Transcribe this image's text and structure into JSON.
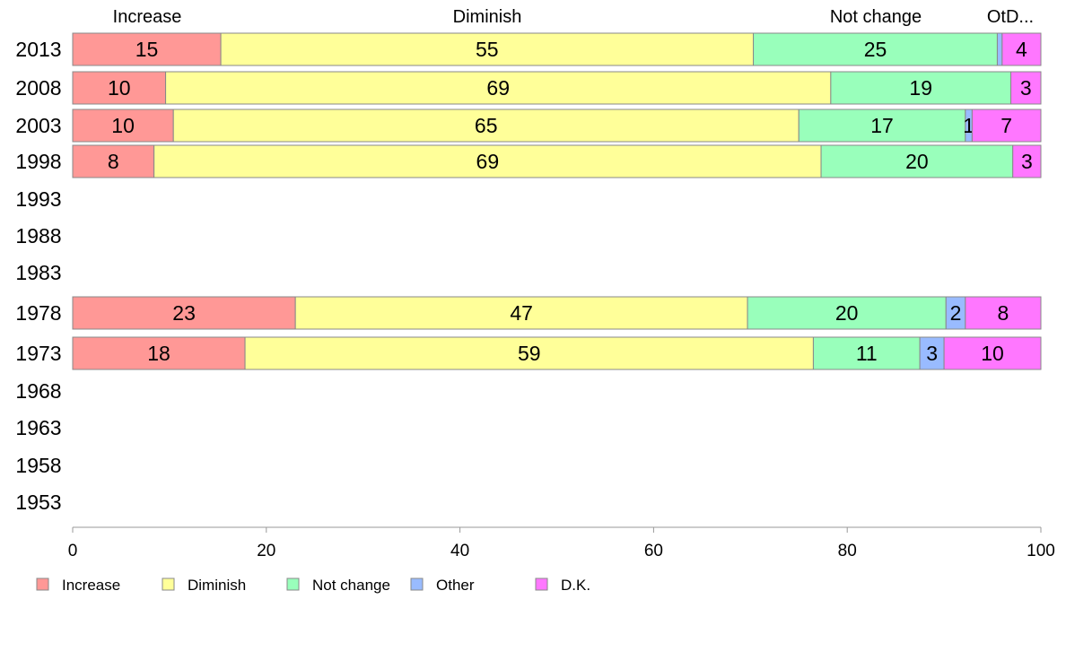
{
  "chart_data": {
    "type": "bar",
    "orientation": "horizontal",
    "stacked": true,
    "categories": [
      "2013",
      "2008",
      "2003",
      "1998",
      "1993",
      "1988",
      "1983",
      "1978",
      "1973",
      "1968",
      "1963",
      "1958",
      "1953"
    ],
    "series": [
      {
        "name": "Increase",
        "color": "#ff9896",
        "values": [
          15.3,
          9.6,
          10.4,
          8.4,
          null,
          null,
          null,
          23,
          17.8,
          null,
          null,
          null,
          null
        ],
        "labels": [
          "15",
          "10",
          "10",
          "8",
          "",
          "",
          "",
          "23",
          "18",
          "",
          "",
          "",
          ""
        ]
      },
      {
        "name": "Diminish",
        "color": "#ffff99",
        "values": [
          55,
          68.7,
          64.6,
          68.9,
          null,
          null,
          null,
          46.7,
          58.7,
          null,
          null,
          null,
          null
        ],
        "labels": [
          "55",
          "69",
          "65",
          "69",
          "",
          "",
          "",
          "47",
          "59",
          "",
          "",
          "",
          ""
        ]
      },
      {
        "name": "Not change",
        "color": "#99ffbb",
        "values": [
          25.2,
          18.6,
          17.2,
          19.8,
          null,
          null,
          null,
          20.5,
          11,
          null,
          null,
          null,
          null
        ],
        "labels": [
          "25",
          "19",
          "17",
          "20",
          "",
          "",
          "",
          "20",
          "11",
          "",
          "",
          "",
          ""
        ]
      },
      {
        "name": "Other",
        "color": "#99bbff",
        "values": [
          0.5,
          0,
          0.7,
          0,
          null,
          null,
          null,
          2,
          2.5,
          null,
          null,
          null,
          null
        ],
        "labels": [
          "",
          "",
          "1",
          "",
          "",
          "",
          "",
          "2",
          "3",
          "",
          "",
          "",
          ""
        ]
      },
      {
        "name": "D.K.",
        "color": "#ff77ff",
        "values": [
          4,
          3.1,
          7.1,
          2.9,
          null,
          null,
          null,
          7.8,
          10,
          null,
          null,
          null,
          null
        ],
        "labels": [
          "4",
          "3",
          "7",
          "3",
          "",
          "",
          "",
          "8",
          "10",
          "",
          "",
          "",
          ""
        ]
      }
    ],
    "top_labels": [
      "Increase",
      "Diminish",
      "Not change",
      "OtD..."
    ],
    "x_ticks": [
      0,
      20,
      40,
      60,
      80,
      100
    ],
    "xlim": [
      0,
      100
    ],
    "grid": false,
    "legend_position": "bottom-left"
  }
}
